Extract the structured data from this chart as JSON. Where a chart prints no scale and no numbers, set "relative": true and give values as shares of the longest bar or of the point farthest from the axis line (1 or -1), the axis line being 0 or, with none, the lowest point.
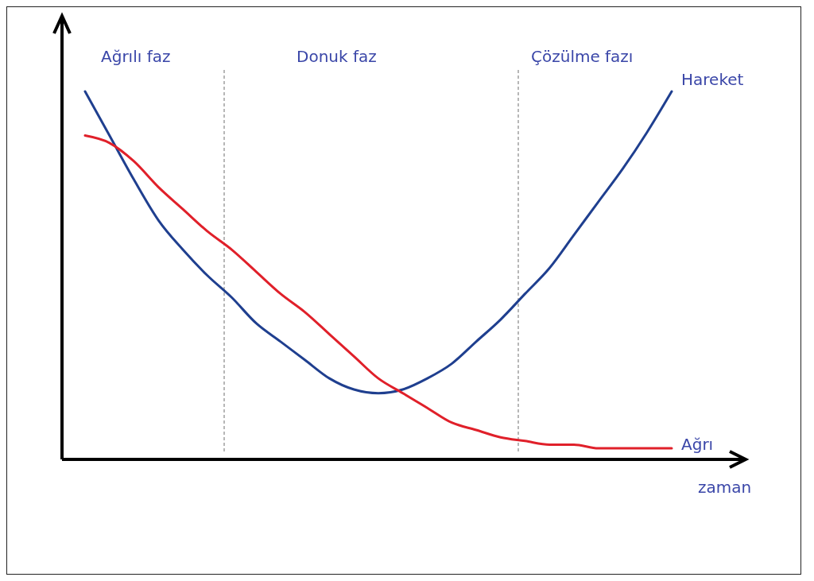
{
  "chart_data": {
    "type": "line",
    "relative": true,
    "xlabel": "zaman",
    "categories": [
      null,
      null,
      null,
      null,
      null,
      null,
      null,
      null,
      null,
      null,
      null,
      null,
      null,
      null,
      null,
      null,
      null,
      null,
      null,
      null,
      null,
      null,
      null,
      null,
      null
    ],
    "series": [
      {
        "name": "Hareket",
        "color": "#1f3f8f",
        "values": [
          1.0,
          0.88,
          0.76,
          0.65,
          0.57,
          0.5,
          0.44,
          0.37,
          0.32,
          0.27,
          0.22,
          0.19,
          0.18,
          0.19,
          0.22,
          0.26,
          0.32,
          0.38,
          0.45,
          0.52,
          0.61,
          0.7,
          0.79,
          0.89,
          1.0
        ]
      },
      {
        "name": "Ağrı",
        "color": "#e0202a",
        "values": [
          0.88,
          0.86,
          0.81,
          0.74,
          0.68,
          0.62,
          0.57,
          0.51,
          0.45,
          0.4,
          0.34,
          0.28,
          0.22,
          0.18,
          0.14,
          0.1,
          0.08,
          0.06,
          0.05,
          0.04,
          0.04,
          0.03,
          0.03,
          0.03,
          0.03
        ]
      }
    ],
    "annotations": [
      "Ağrılı faz",
      "Donuk faz",
      "Çözülme fazı"
    ],
    "line_style": "solid",
    "marker": "none"
  }
}
